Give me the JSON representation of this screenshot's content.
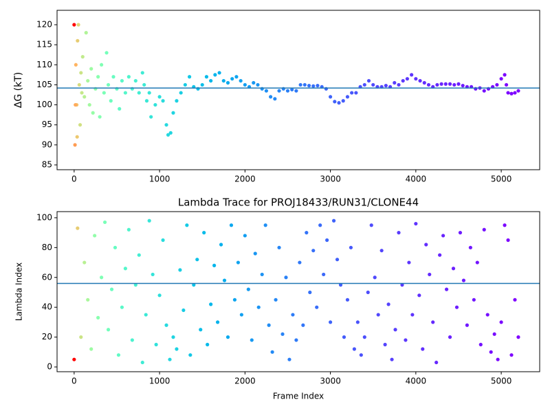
{
  "chart_data": [
    {
      "type": "scatter",
      "ylabel": "ΔG (kT)",
      "colormap": "rainbow_r",
      "hline": 104.2,
      "hline_color": "#1f77b4",
      "xlim": [
        -200,
        5450
      ],
      "ylim": [
        83.8,
        123.6
      ],
      "xticks": [
        0,
        1000,
        2000,
        3000,
        4000,
        5000
      ],
      "yticks": [
        85,
        90,
        95,
        100,
        105,
        110,
        115,
        120
      ],
      "x": [
        0,
        10,
        20,
        30,
        40,
        50,
        15,
        35,
        60,
        70,
        80,
        90,
        100,
        120,
        140,
        160,
        180,
        200,
        220,
        250,
        280,
        300,
        320,
        350,
        380,
        400,
        430,
        460,
        500,
        530,
        560,
        600,
        640,
        680,
        720,
        760,
        800,
        820,
        850,
        880,
        900,
        950,
        1000,
        1040,
        1080,
        1100,
        1130,
        1160,
        1200,
        1250,
        1300,
        1350,
        1400,
        1450,
        1500,
        1550,
        1600,
        1650,
        1700,
        1750,
        1800,
        1850,
        1900,
        1950,
        2000,
        2050,
        2100,
        2150,
        2200,
        2250,
        2300,
        2350,
        2400,
        2450,
        2500,
        2550,
        2600,
        2650,
        2700,
        2750,
        2800,
        2850,
        2900,
        2950,
        3000,
        3050,
        3100,
        3150,
        3200,
        3250,
        3300,
        3350,
        3400,
        3450,
        3500,
        3550,
        3600,
        3650,
        3700,
        3750,
        3800,
        3850,
        3900,
        3950,
        4000,
        4050,
        4100,
        4150,
        4200,
        4250,
        4300,
        4350,
        4400,
        4450,
        4500,
        4550,
        4600,
        4650,
        4700,
        4750,
        4800,
        4850,
        4900,
        4950,
        5000,
        5040,
        5060,
        5080,
        5120,
        5160,
        5200
      ],
      "y": [
        120,
        90,
        110,
        100,
        116,
        120,
        100,
        92,
        105,
        95,
        108,
        103,
        112,
        102,
        118,
        106,
        100,
        109,
        98,
        104,
        107,
        97,
        110,
        103,
        113,
        105,
        101,
        107,
        104,
        99,
        106,
        103,
        107,
        104,
        106,
        103,
        108,
        105,
        101,
        103,
        97,
        100,
        102,
        101,
        95,
        92.5,
        93,
        98,
        101,
        103,
        105,
        107,
        104.5,
        104,
        105,
        107,
        106,
        107.5,
        108,
        106,
        105.5,
        106.5,
        107,
        106,
        105,
        104.5,
        105.5,
        105,
        104,
        103.5,
        102,
        101.5,
        103.5,
        104,
        103.5,
        103.8,
        103.5,
        105,
        105,
        104.8,
        104.7,
        104.8,
        104.5,
        104,
        102,
        100.8,
        100.5,
        101,
        102,
        103,
        103,
        104.5,
        105,
        106,
        105,
        104.5,
        104.5,
        104.8,
        104.5,
        105.5,
        105,
        106,
        106.5,
        107.5,
        106.5,
        106,
        105.5,
        105,
        104.5,
        105,
        105.2,
        105.2,
        105.2,
        105,
        105.2,
        104.8,
        104.5,
        104.5,
        104,
        104.2,
        103.5,
        104,
        104.5,
        105,
        106.5,
        107.5,
        105,
        103,
        102.8,
        103,
        103.5
      ]
    },
    {
      "type": "scatter",
      "title": "Lambda Trace for PROJ18433/RUN31/CLONE44",
      "xlabel": "Frame Index",
      "ylabel": "Lambda Index",
      "colormap": "rainbow_r",
      "hline": 56,
      "hline_color": "#1f77b4",
      "xlim": [
        -200,
        5450
      ],
      "ylim": [
        -3.2,
        104.1
      ],
      "xticks": [
        0,
        1000,
        2000,
        3000,
        4000,
        5000
      ],
      "yticks": [
        0,
        20,
        40,
        60,
        80,
        100
      ],
      "x": [
        0,
        40,
        80,
        120,
        160,
        200,
        240,
        280,
        320,
        360,
        400,
        440,
        480,
        520,
        560,
        600,
        640,
        680,
        720,
        760,
        800,
        840,
        880,
        920,
        960,
        1000,
        1040,
        1080,
        1120,
        1160,
        1200,
        1240,
        1280,
        1320,
        1360,
        1400,
        1440,
        1480,
        1520,
        1560,
        1600,
        1640,
        1680,
        1720,
        1760,
        1800,
        1840,
        1880,
        1920,
        1960,
        2000,
        2040,
        2080,
        2120,
        2160,
        2200,
        2240,
        2280,
        2320,
        2360,
        2400,
        2440,
        2480,
        2520,
        2560,
        2600,
        2640,
        2680,
        2720,
        2760,
        2800,
        2840,
        2880,
        2920,
        2960,
        3000,
        3040,
        3080,
        3120,
        3160,
        3200,
        3240,
        3280,
        3320,
        3360,
        3400,
        3440,
        3480,
        3520,
        3560,
        3600,
        3640,
        3680,
        3720,
        3760,
        3800,
        3840,
        3880,
        3920,
        3960,
        4000,
        4040,
        4080,
        4120,
        4160,
        4200,
        4240,
        4280,
        4320,
        4360,
        4400,
        4440,
        4480,
        4520,
        4560,
        4600,
        4640,
        4680,
        4720,
        4760,
        4800,
        4840,
        4880,
        4920,
        4960,
        5000,
        5040,
        5080,
        5120,
        5160,
        5200
      ],
      "y": [
        5,
        93,
        20,
        70,
        45,
        12,
        88,
        33,
        60,
        97,
        25,
        52,
        80,
        8,
        40,
        66,
        92,
        18,
        55,
        75,
        3,
        35,
        98,
        62,
        15,
        48,
        85,
        28,
        5,
        20,
        12,
        65,
        38,
        95,
        8,
        55,
        72,
        25,
        90,
        15,
        42,
        68,
        30,
        82,
        58,
        20,
        95,
        45,
        70,
        35,
        88,
        52,
        18,
        76,
        40,
        62,
        95,
        28,
        10,
        45,
        80,
        22,
        60,
        5,
        35,
        18,
        70,
        28,
        90,
        50,
        78,
        40,
        95,
        62,
        85,
        30,
        98,
        72,
        55,
        20,
        45,
        80,
        12,
        30,
        8,
        20,
        50,
        95,
        60,
        35,
        78,
        15,
        42,
        5,
        25,
        90,
        55,
        18,
        70,
        35,
        96,
        48,
        12,
        82,
        62,
        30,
        3,
        75,
        88,
        52,
        20,
        66,
        40,
        90,
        58,
        28,
        80,
        45,
        70,
        15,
        92,
        35,
        10,
        22,
        5,
        30,
        95,
        85,
        8,
        45,
        20
      ]
    }
  ]
}
